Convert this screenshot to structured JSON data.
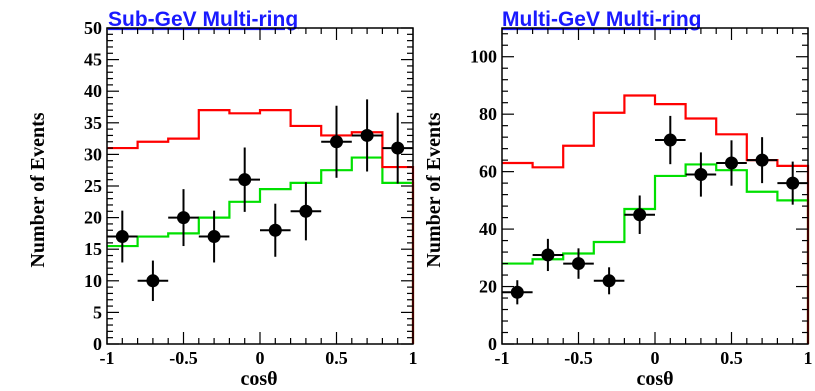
{
  "colors": {
    "data": "#000000",
    "red_mc": "#ff0000",
    "green_mc": "#00e000",
    "title": "#1a1aff"
  },
  "chart_data": [
    {
      "type": "histogram",
      "title": "Sub-GeV Multi-ring",
      "xlabel": "cosθ",
      "ylabel": "Number of Events",
      "xlim": [
        -1,
        1
      ],
      "ylim": [
        0,
        50
      ],
      "x_ticks": [
        -1,
        -0.5,
        0,
        0.5,
        1
      ],
      "x_tick_labels": [
        "-1",
        "-0.5",
        "0",
        "0.5",
        "1"
      ],
      "y_ticks": [
        0,
        5,
        10,
        15,
        20,
        25,
        30,
        35,
        40,
        45,
        50
      ],
      "y_tick_labels": [
        "0",
        "5",
        "10",
        "15",
        "20",
        "25",
        "30",
        "35",
        "40",
        "45",
        "50"
      ],
      "bin_edges": [
        -1,
        -0.8,
        -0.6,
        -0.4,
        -0.2,
        0,
        0.2,
        0.4,
        0.6,
        0.8,
        1
      ],
      "red_mc": [
        31,
        32,
        32.5,
        37,
        36.5,
        37,
        34.5,
        33,
        33.5,
        28
      ],
      "green_mc": [
        15.5,
        17,
        17.5,
        20,
        22.5,
        24.5,
        25.5,
        27.5,
        29.5,
        25.5
      ],
      "data": {
        "x": [
          -0.9,
          -0.7,
          -0.5,
          -0.3,
          -0.1,
          0.1,
          0.3,
          0.5,
          0.7,
          0.9
        ],
        "y": [
          17,
          10,
          20,
          17,
          26,
          18,
          21,
          32,
          33,
          31
        ],
        "yerr": [
          4.1,
          3.2,
          4.5,
          4.1,
          5.1,
          4.2,
          4.6,
          5.7,
          5.7,
          5.6
        ]
      }
    },
    {
      "type": "histogram",
      "title": "Multi-GeV Multi-ring",
      "xlabel": "cosθ",
      "ylabel": "Number of Events",
      "xlim": [
        -1,
        1
      ],
      "ylim": [
        0,
        110
      ],
      "x_ticks": [
        -1,
        -0.5,
        0,
        0.5,
        1
      ],
      "x_tick_labels": [
        "-1",
        "-0.5",
        "0",
        "0.5",
        "1"
      ],
      "y_ticks": [
        0,
        20,
        40,
        60,
        80,
        100
      ],
      "y_tick_labels": [
        "0",
        "20",
        "40",
        "60",
        "80",
        "100"
      ],
      "bin_edges": [
        -1,
        -0.8,
        -0.6,
        -0.4,
        -0.2,
        0,
        0.2,
        0.4,
        0.6,
        0.8,
        1
      ],
      "red_mc": [
        63,
        61.5,
        69,
        80.5,
        86.5,
        83.5,
        78.5,
        73,
        64,
        62
      ],
      "green_mc": [
        28,
        29.5,
        31.5,
        35.5,
        47,
        58.5,
        62.5,
        60.5,
        53,
        50
      ],
      "data": {
        "x": [
          -0.9,
          -0.7,
          -0.5,
          -0.3,
          -0.1,
          0.1,
          0.3,
          0.5,
          0.7,
          0.9
        ],
        "y": [
          18,
          31,
          28,
          22,
          45,
          71,
          59,
          63,
          64,
          56
        ],
        "yerr": [
          4.2,
          5.6,
          5.3,
          4.7,
          6.7,
          8.4,
          7.7,
          7.9,
          8.0,
          7.5
        ]
      }
    }
  ]
}
